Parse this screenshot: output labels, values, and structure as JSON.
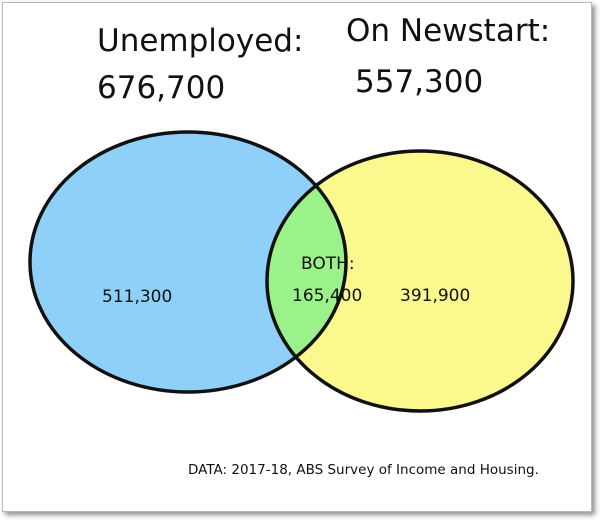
{
  "diagram": {
    "left_set": {
      "title": "Unemployed:",
      "total": "676,700",
      "only_value": "511,300",
      "color": "#8ed0f8"
    },
    "right_set": {
      "title": "On Newstart:",
      "total": "557,300",
      "only_value": "391,900",
      "color": "#fbf98d"
    },
    "intersection": {
      "label": "BOTH:",
      "value": "165,400",
      "color": "#9cf28a"
    },
    "outline_color": "#111111"
  },
  "source": "DATA: 2017-18, ABS Survey of Income and Housing."
}
